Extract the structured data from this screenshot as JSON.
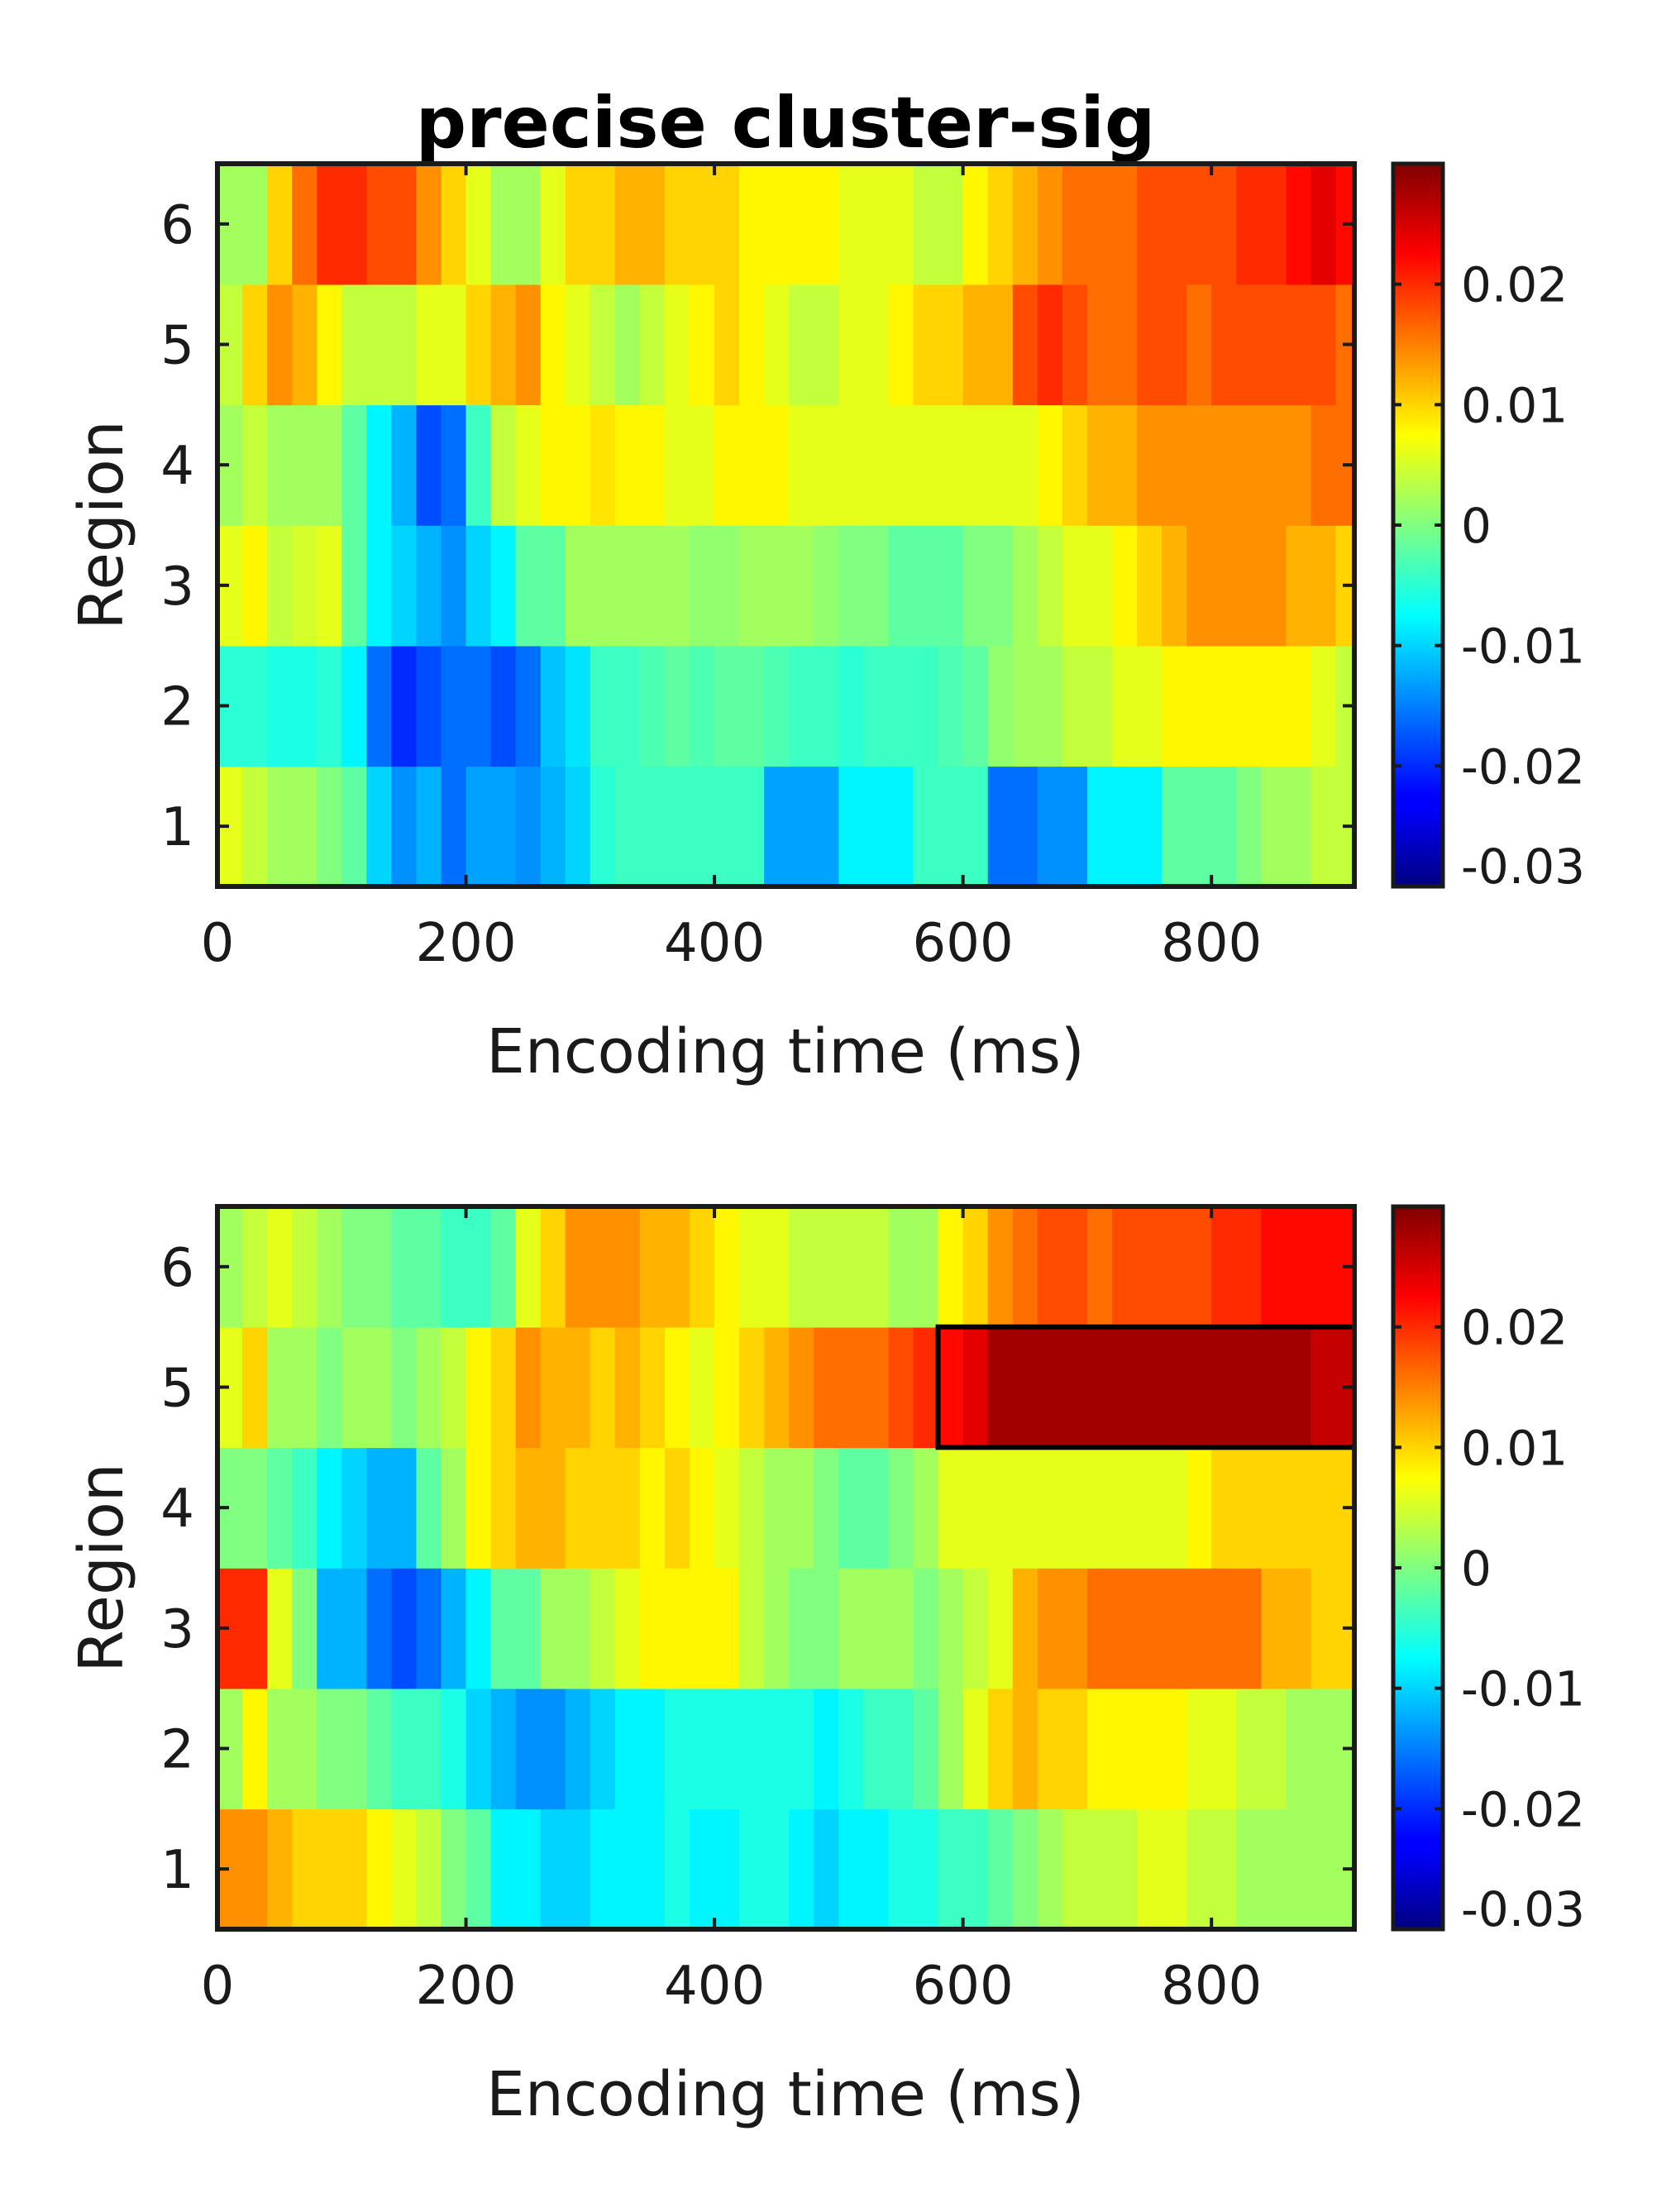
{
  "chart_data": [
    {
      "type": "heatmap",
      "title": "precise cluster-sig",
      "xlabel": "Encoding time (ms)",
      "ylabel": "Region",
      "x_ticks": [
        "0",
        "200",
        "400",
        "600",
        "800"
      ],
      "y_ticks": [
        "1",
        "2",
        "3",
        "4",
        "5",
        "6"
      ],
      "xlim": [
        0,
        915
      ],
      "ylim": [
        0.5,
        6.5
      ],
      "colormap": "jet",
      "clim": [
        -0.03,
        0.03
      ],
      "colorbar_ticks": [
        "0.02",
        "0.01",
        "0",
        "-0.01",
        "-0.02",
        "-0.03"
      ],
      "bin_ms": 20,
      "rows": [
        {
          "region": 1,
          "values": [
            0.006,
            0.004,
            0.002,
            0.002,
            0.0,
            -0.002,
            -0.01,
            -0.014,
            -0.012,
            -0.016,
            -0.013,
            -0.013,
            -0.014,
            -0.012,
            -0.01,
            -0.005,
            -0.004,
            -0.004,
            -0.004,
            -0.004,
            -0.004,
            -0.004,
            -0.013,
            -0.013,
            -0.013,
            -0.008,
            -0.008,
            -0.008,
            -0.004,
            -0.004,
            -0.004,
            -0.016,
            -0.016,
            -0.014,
            -0.014,
            -0.008,
            -0.008,
            -0.008,
            -0.002,
            -0.002,
            -0.002,
            0.0,
            0.002,
            0.002,
            0.004,
            0.004
          ]
        },
        {
          "region": 2,
          "values": [
            -0.005,
            -0.005,
            -0.006,
            -0.006,
            -0.005,
            -0.008,
            -0.016,
            -0.02,
            -0.018,
            -0.016,
            -0.016,
            -0.018,
            -0.016,
            -0.011,
            -0.009,
            -0.004,
            -0.004,
            -0.003,
            -0.002,
            -0.003,
            -0.002,
            -0.002,
            -0.003,
            -0.004,
            -0.004,
            -0.005,
            -0.004,
            -0.004,
            -0.004,
            -0.003,
            -0.002,
            0.001,
            0.002,
            0.002,
            0.004,
            0.004,
            0.006,
            0.006,
            0.008,
            0.008,
            0.008,
            0.008,
            0.008,
            0.008,
            0.006,
            0.004
          ]
        },
        {
          "region": 3,
          "values": [
            0.006,
            0.008,
            0.004,
            0.005,
            0.006,
            -0.002,
            -0.008,
            -0.01,
            -0.012,
            -0.014,
            -0.01,
            -0.008,
            -0.002,
            -0.002,
            0.002,
            0.002,
            0.002,
            0.002,
            0.002,
            0.001,
            0.001,
            0.002,
            0.002,
            0.002,
            0.001,
            0.0,
            0.0,
            -0.002,
            -0.002,
            -0.002,
            0.0,
            0.0,
            0.002,
            0.004,
            0.006,
            0.006,
            0.008,
            0.01,
            0.012,
            0.014,
            0.014,
            0.014,
            0.014,
            0.012,
            0.012,
            0.01
          ]
        },
        {
          "region": 4,
          "values": [
            0.002,
            0.004,
            0.002,
            0.002,
            0.002,
            -0.002,
            -0.008,
            -0.012,
            -0.018,
            -0.016,
            -0.004,
            0.004,
            0.006,
            0.008,
            0.008,
            0.009,
            0.008,
            0.008,
            0.006,
            0.006,
            0.008,
            0.008,
            0.008,
            0.006,
            0.006,
            0.006,
            0.006,
            0.006,
            0.006,
            0.006,
            0.006,
            0.006,
            0.006,
            0.008,
            0.01,
            0.012,
            0.012,
            0.014,
            0.014,
            0.014,
            0.014,
            0.014,
            0.014,
            0.014,
            0.016,
            0.016
          ]
        },
        {
          "region": 5,
          "values": [
            0.004,
            0.01,
            0.014,
            0.012,
            0.008,
            0.004,
            0.004,
            0.004,
            0.006,
            0.006,
            0.01,
            0.012,
            0.014,
            0.008,
            0.006,
            0.004,
            0.002,
            0.004,
            0.006,
            0.008,
            0.01,
            0.008,
            0.006,
            0.004,
            0.004,
            0.006,
            0.006,
            0.008,
            0.01,
            0.01,
            0.012,
            0.012,
            0.018,
            0.02,
            0.018,
            0.016,
            0.016,
            0.018,
            0.018,
            0.016,
            0.018,
            0.018,
            0.018,
            0.018,
            0.018,
            0.016
          ]
        },
        {
          "region": 6,
          "values": [
            0.002,
            0.002,
            0.01,
            0.016,
            0.02,
            0.02,
            0.018,
            0.018,
            0.014,
            0.01,
            0.006,
            0.002,
            0.002,
            0.006,
            0.01,
            0.01,
            0.012,
            0.012,
            0.01,
            0.01,
            0.01,
            0.008,
            0.008,
            0.008,
            0.008,
            0.006,
            0.006,
            0.006,
            0.004,
            0.004,
            0.008,
            0.01,
            0.012,
            0.014,
            0.016,
            0.016,
            0.016,
            0.018,
            0.018,
            0.018,
            0.018,
            0.02,
            0.02,
            0.022,
            0.024,
            0.022
          ]
        }
      ]
    },
    {
      "type": "heatmap",
      "title": "",
      "xlabel": "Encoding time (ms)",
      "ylabel": "Region",
      "x_ticks": [
        "0",
        "200",
        "400",
        "600",
        "800"
      ],
      "y_ticks": [
        "1",
        "2",
        "3",
        "4",
        "5",
        "6"
      ],
      "xlim": [
        0,
        915
      ],
      "ylim": [
        0.5,
        6.5
      ],
      "colormap": "jet",
      "clim": [
        -0.03,
        0.03
      ],
      "colorbar_ticks": [
        "0.02",
        "0.01",
        "0",
        "-0.01",
        "-0.02",
        "-0.03"
      ],
      "bin_ms": 20,
      "significant_cluster": {
        "region": 5,
        "x_range": [
          580,
          915
        ]
      },
      "rows": [
        {
          "region": 1,
          "values": [
            0.014,
            0.014,
            0.012,
            0.01,
            0.01,
            0.01,
            0.008,
            0.006,
            0.004,
            0.0,
            -0.002,
            -0.008,
            -0.008,
            -0.01,
            -0.01,
            -0.008,
            -0.008,
            -0.008,
            -0.006,
            -0.008,
            -0.008,
            -0.006,
            -0.006,
            -0.008,
            -0.01,
            -0.008,
            -0.008,
            -0.006,
            -0.006,
            -0.004,
            -0.004,
            -0.002,
            0.0,
            0.002,
            0.004,
            0.004,
            0.004,
            0.006,
            0.006,
            0.004,
            0.004,
            0.002,
            0.002,
            0.002,
            0.002,
            0.002
          ]
        },
        {
          "region": 2,
          "values": [
            0.002,
            0.008,
            0.002,
            0.002,
            0.0,
            0.0,
            -0.002,
            -0.004,
            -0.004,
            -0.006,
            -0.01,
            -0.012,
            -0.014,
            -0.014,
            -0.012,
            -0.01,
            -0.008,
            -0.008,
            -0.006,
            -0.006,
            -0.006,
            -0.006,
            -0.006,
            -0.006,
            -0.008,
            -0.006,
            -0.004,
            -0.004,
            -0.002,
            0.002,
            0.006,
            0.01,
            0.012,
            0.01,
            0.01,
            0.008,
            0.008,
            0.008,
            0.008,
            0.006,
            0.006,
            0.004,
            0.004,
            0.002,
            0.002,
            0.002
          ]
        },
        {
          "region": 3,
          "values": [
            0.02,
            0.02,
            0.006,
            0.0,
            -0.012,
            -0.012,
            -0.016,
            -0.018,
            -0.016,
            -0.012,
            -0.008,
            -0.002,
            -0.002,
            0.002,
            0.002,
            0.004,
            0.006,
            0.008,
            0.008,
            0.008,
            0.008,
            0.004,
            0.002,
            0.0,
            0.0,
            0.002,
            0.002,
            0.002,
            0.0,
            0.002,
            0.004,
            0.006,
            0.012,
            0.014,
            0.014,
            0.016,
            0.016,
            0.016,
            0.016,
            0.016,
            0.016,
            0.016,
            0.012,
            0.012,
            0.01,
            0.01
          ]
        },
        {
          "region": 4,
          "values": [
            0.0,
            0.0,
            -0.002,
            -0.004,
            -0.008,
            -0.01,
            -0.012,
            -0.012,
            -0.002,
            0.002,
            0.008,
            0.01,
            0.012,
            0.012,
            0.01,
            0.01,
            0.01,
            0.008,
            0.01,
            0.008,
            0.006,
            0.004,
            0.002,
            0.002,
            0.0,
            -0.002,
            -0.002,
            0.0,
            0.002,
            0.006,
            0.006,
            0.006,
            0.006,
            0.006,
            0.006,
            0.006,
            0.006,
            0.006,
            0.006,
            0.008,
            0.01,
            0.01,
            0.01,
            0.01,
            0.01,
            0.01
          ]
        },
        {
          "region": 5,
          "values": [
            0.006,
            0.01,
            0.002,
            0.002,
            0.0,
            0.002,
            0.002,
            0.0,
            0.002,
            0.004,
            0.008,
            0.01,
            0.014,
            0.012,
            0.012,
            0.01,
            0.012,
            0.01,
            0.008,
            0.006,
            0.008,
            0.01,
            0.012,
            0.014,
            0.016,
            0.016,
            0.016,
            0.018,
            0.02,
            0.022,
            0.024,
            0.028,
            0.028,
            0.028,
            0.028,
            0.028,
            0.028,
            0.028,
            0.028,
            0.028,
            0.028,
            0.028,
            0.028,
            0.028,
            0.026,
            0.026
          ]
        },
        {
          "region": 6,
          "values": [
            0.002,
            0.004,
            0.006,
            0.004,
            0.002,
            0.0,
            0.0,
            -0.002,
            -0.002,
            -0.004,
            -0.004,
            -0.002,
            0.006,
            0.01,
            0.014,
            0.014,
            0.014,
            0.012,
            0.012,
            0.01,
            0.008,
            0.006,
            0.006,
            0.004,
            0.004,
            0.004,
            0.004,
            0.002,
            0.002,
            0.008,
            0.01,
            0.014,
            0.016,
            0.018,
            0.018,
            0.016,
            0.018,
            0.018,
            0.018,
            0.018,
            0.02,
            0.02,
            0.022,
            0.022,
            0.022,
            0.022
          ]
        }
      ]
    }
  ]
}
